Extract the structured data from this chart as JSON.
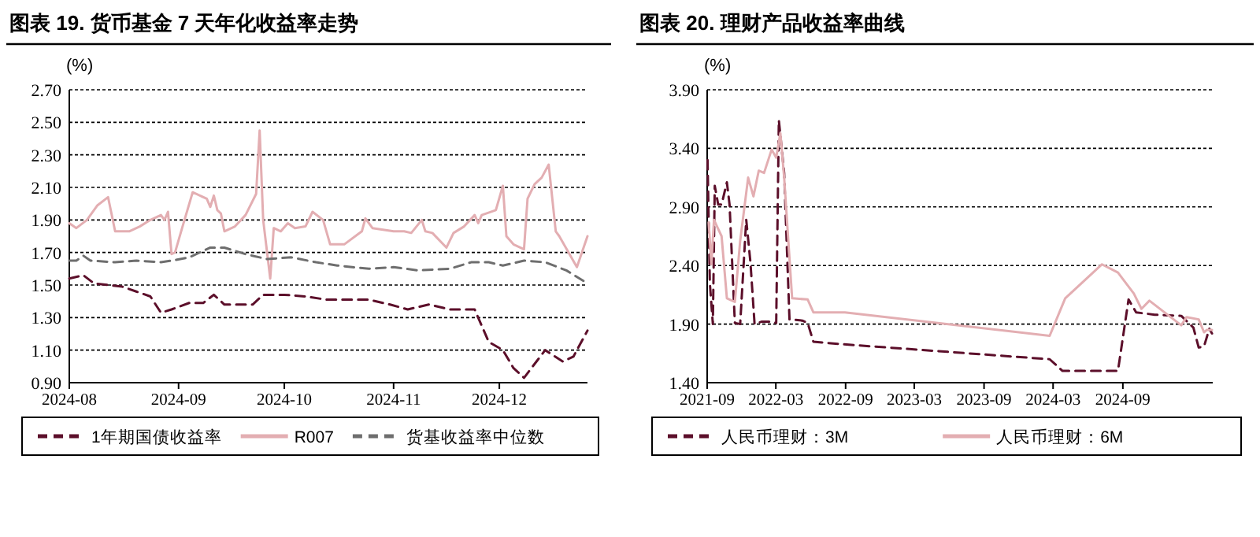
{
  "chart_data": [
    {
      "type": "line",
      "title": "图表 19. 货币基金 7 天年化收益率走势",
      "ylabel": "(%)",
      "grid": "y",
      "legend": "bottom",
      "xlim": [
        "2024-08-01",
        "2024-12-26"
      ],
      "xticks": [
        "2024-08",
        "2024-09",
        "2024-10",
        "2024-11",
        "2024-12"
      ],
      "ylim": [
        0.9,
        2.7
      ],
      "yticks": [
        {
          "value": 0.9,
          "label": "0.90"
        },
        {
          "value": 1.1,
          "label": "1.10"
        },
        {
          "value": 1.3,
          "label": "1.30"
        },
        {
          "value": 1.5,
          "label": "1.50"
        },
        {
          "value": 1.7,
          "label": "1.70"
        },
        {
          "value": 1.9,
          "label": "1.90"
        },
        {
          "value": 2.1,
          "label": "2.10"
        },
        {
          "value": 2.3,
          "label": "2.30"
        },
        {
          "value": 2.5,
          "label": "2.50"
        },
        {
          "value": 2.7,
          "label": "2.70"
        }
      ],
      "series": [
        {
          "name": "1年期国债收益率",
          "color": "#5c0f2a",
          "line_style": "dashed",
          "x": [
            "2024-08-01",
            "2024-08-05",
            "2024-08-08",
            "2024-08-16",
            "2024-08-20",
            "2024-08-24",
            "2024-08-27",
            "2024-08-30",
            "2024-09-04",
            "2024-09-08",
            "2024-09-11",
            "2024-09-14",
            "2024-09-22",
            "2024-09-25",
            "2024-10-01",
            "2024-10-07",
            "2024-10-13",
            "2024-10-25",
            "2024-10-31",
            "2024-11-05",
            "2024-11-11",
            "2024-11-17",
            "2024-11-24",
            "2024-11-28",
            "2024-12-02",
            "2024-12-05",
            "2024-12-08",
            "2024-12-14",
            "2024-12-19",
            "2024-12-22",
            "2024-12-26"
          ],
          "values": [
            1.54,
            1.56,
            1.51,
            1.49,
            1.46,
            1.43,
            1.33,
            1.35,
            1.39,
            1.39,
            1.44,
            1.38,
            1.38,
            1.44,
            1.44,
            1.43,
            1.41,
            1.41,
            1.38,
            1.35,
            1.38,
            1.35,
            1.35,
            1.15,
            1.1,
            0.99,
            0.93,
            1.1,
            1.03,
            1.06,
            1.22
          ]
        },
        {
          "name": "R007",
          "color": "#e3aeb2",
          "line_style": "solid",
          "x": [
            "2024-08-01",
            "2024-08-03",
            "2024-08-06",
            "2024-08-09",
            "2024-08-12",
            "2024-08-14",
            "2024-08-16",
            "2024-08-18",
            "2024-08-21",
            "2024-08-24",
            "2024-08-27",
            "2024-08-28",
            "2024-08-29",
            "2024-08-30",
            "2024-08-31",
            "2024-09-02",
            "2024-09-05",
            "2024-09-09",
            "2024-09-10",
            "2024-09-11",
            "2024-09-12",
            "2024-09-13",
            "2024-09-14",
            "2024-09-17",
            "2024-09-20",
            "2024-09-23",
            "2024-09-24",
            "2024-09-25",
            "2024-09-27",
            "2024-09-28",
            "2024-09-30",
            "2024-10-02",
            "2024-10-04",
            "2024-10-07",
            "2024-10-09",
            "2024-10-12",
            "2024-10-14",
            "2024-10-18",
            "2024-10-23",
            "2024-10-24",
            "2024-10-26",
            "2024-11-01",
            "2024-11-04",
            "2024-11-06",
            "2024-11-09",
            "2024-11-10",
            "2024-11-12",
            "2024-11-16",
            "2024-11-18",
            "2024-11-21",
            "2024-11-24",
            "2024-11-25",
            "2024-11-26",
            "2024-11-30",
            "2024-12-02",
            "2024-12-03",
            "2024-12-05",
            "2024-12-08",
            "2024-12-09",
            "2024-12-11",
            "2024-12-13",
            "2024-12-15",
            "2024-12-17",
            "2024-12-18",
            "2024-12-23",
            "2024-12-26"
          ],
          "values": [
            1.88,
            1.85,
            1.9,
            1.99,
            2.04,
            1.83,
            1.83,
            1.83,
            1.86,
            1.9,
            1.93,
            1.9,
            1.95,
            1.69,
            1.7,
            1.85,
            2.07,
            2.03,
            1.98,
            2.05,
            1.96,
            1.94,
            1.83,
            1.86,
            1.93,
            2.06,
            2.45,
            1.9,
            1.54,
            1.85,
            1.83,
            1.88,
            1.85,
            1.86,
            1.95,
            1.9,
            1.75,
            1.75,
            1.83,
            1.91,
            1.85,
            1.83,
            1.83,
            1.82,
            1.9,
            1.83,
            1.82,
            1.73,
            1.82,
            1.86,
            1.93,
            1.88,
            1.93,
            1.96,
            2.11,
            1.8,
            1.75,
            1.72,
            2.03,
            2.12,
            2.16,
            2.24,
            1.83,
            1.8,
            1.61,
            1.8
          ]
        },
        {
          "name": "货基收益率中位数",
          "color": "#6e6e6e",
          "line_style": "dashed",
          "x": [
            "2024-08-01",
            "2024-08-03",
            "2024-08-05",
            "2024-08-07",
            "2024-08-14",
            "2024-08-20",
            "2024-08-27",
            "2024-08-30",
            "2024-09-04",
            "2024-09-10",
            "2024-09-14",
            "2024-09-20",
            "2024-09-26",
            "2024-10-03",
            "2024-10-10",
            "2024-10-16",
            "2024-10-25",
            "2024-11-01",
            "2024-11-08",
            "2024-11-17",
            "2024-11-23",
            "2024-11-28",
            "2024-12-02",
            "2024-12-08",
            "2024-12-14",
            "2024-12-20",
            "2024-12-26"
          ],
          "values": [
            1.65,
            1.65,
            1.68,
            1.65,
            1.64,
            1.65,
            1.64,
            1.65,
            1.67,
            1.73,
            1.73,
            1.69,
            1.66,
            1.67,
            1.64,
            1.62,
            1.6,
            1.61,
            1.59,
            1.6,
            1.64,
            1.64,
            1.62,
            1.65,
            1.64,
            1.59,
            1.51
          ]
        }
      ]
    },
    {
      "type": "line",
      "title": "图表 20. 理财产品收益率曲线",
      "ylabel": "(%)",
      "grid": "y",
      "legend": "bottom",
      "xlim": [
        "2021-09-01",
        "2025-04-26"
      ],
      "xticks": [
        "2021-09",
        "2022-03",
        "2022-09",
        "2023-03",
        "2023-09",
        "2024-03",
        "2024-09"
      ],
      "ylim": [
        1.4,
        3.9
      ],
      "yticks": [
        {
          "value": 1.4,
          "label": "1.40"
        },
        {
          "value": 1.9,
          "label": "1.90"
        },
        {
          "value": 2.4,
          "label": "2.40"
        },
        {
          "value": 2.9,
          "label": "2.90"
        },
        {
          "value": 3.4,
          "label": "3.40"
        },
        {
          "value": 3.9,
          "label": "3.90"
        }
      ],
      "series": [
        {
          "name": "人民币理财：3M",
          "color": "#5c0f2a",
          "line_style": "dashed",
          "x": [
            "2021-09-02",
            "2021-09-08",
            "2021-09-16",
            "2021-09-21",
            "2021-09-30",
            "2021-10-09",
            "2021-10-23",
            "2021-10-30",
            "2021-11-13",
            "2021-11-27",
            "2021-12-13",
            "2021-12-24",
            "2022-01-04",
            "2022-01-22",
            "2022-02-18",
            "2022-03-02",
            "2022-03-09",
            "2022-03-23",
            "2022-04-06",
            "2022-05-10",
            "2022-05-24",
            "2022-06-08",
            "2022-08-16",
            "2024-02-21",
            "2024-03-26",
            "2024-08-19",
            "2024-09-16",
            "2024-10-06",
            "2024-11-24",
            "2025-02-02",
            "2025-03-06",
            "2025-03-20",
            "2025-04-03",
            "2025-04-17",
            "2025-04-24"
          ],
          "values": [
            3.3,
            2.25,
            1.9,
            3.08,
            2.92,
            2.92,
            3.11,
            2.92,
            1.91,
            1.9,
            2.79,
            2.43,
            1.9,
            1.92,
            1.92,
            1.91,
            3.64,
            3.19,
            1.94,
            1.93,
            1.91,
            1.75,
            1.73,
            1.6,
            1.5,
            1.5,
            2.11,
            2.0,
            1.98,
            1.97,
            1.87,
            1.7,
            1.71,
            1.86,
            1.82
          ]
        },
        {
          "name": "人民币理财：6M",
          "color": "#e3aeb2",
          "line_style": "solid",
          "x": [
            "2021-09-05",
            "2021-09-12",
            "2021-09-19",
            "2021-09-26",
            "2021-10-09",
            "2021-10-23",
            "2021-11-13",
            "2021-11-27",
            "2021-12-18",
            "2022-01-01",
            "2022-01-15",
            "2022-01-29",
            "2022-02-18",
            "2022-03-02",
            "2022-03-13",
            "2022-03-23",
            "2022-04-13",
            "2022-05-24",
            "2022-06-08",
            "2022-08-30",
            "2024-02-21",
            "2024-04-02",
            "2024-07-08",
            "2024-08-19",
            "2024-09-30",
            "2024-10-20",
            "2024-11-10",
            "2025-02-02",
            "2025-02-16",
            "2025-03-20",
            "2025-04-03",
            "2025-04-10",
            "2025-04-24"
          ],
          "values": [
            2.77,
            2.41,
            2.79,
            2.74,
            2.65,
            2.12,
            2.09,
            2.61,
            3.15,
            2.99,
            3.21,
            3.19,
            3.39,
            3.32,
            3.53,
            3.15,
            2.12,
            2.11,
            2.0,
            2.0,
            1.8,
            2.12,
            2.41,
            2.34,
            2.16,
            2.03,
            2.1,
            1.89,
            1.96,
            1.94,
            1.83,
            1.85,
            1.85
          ]
        }
      ]
    }
  ]
}
